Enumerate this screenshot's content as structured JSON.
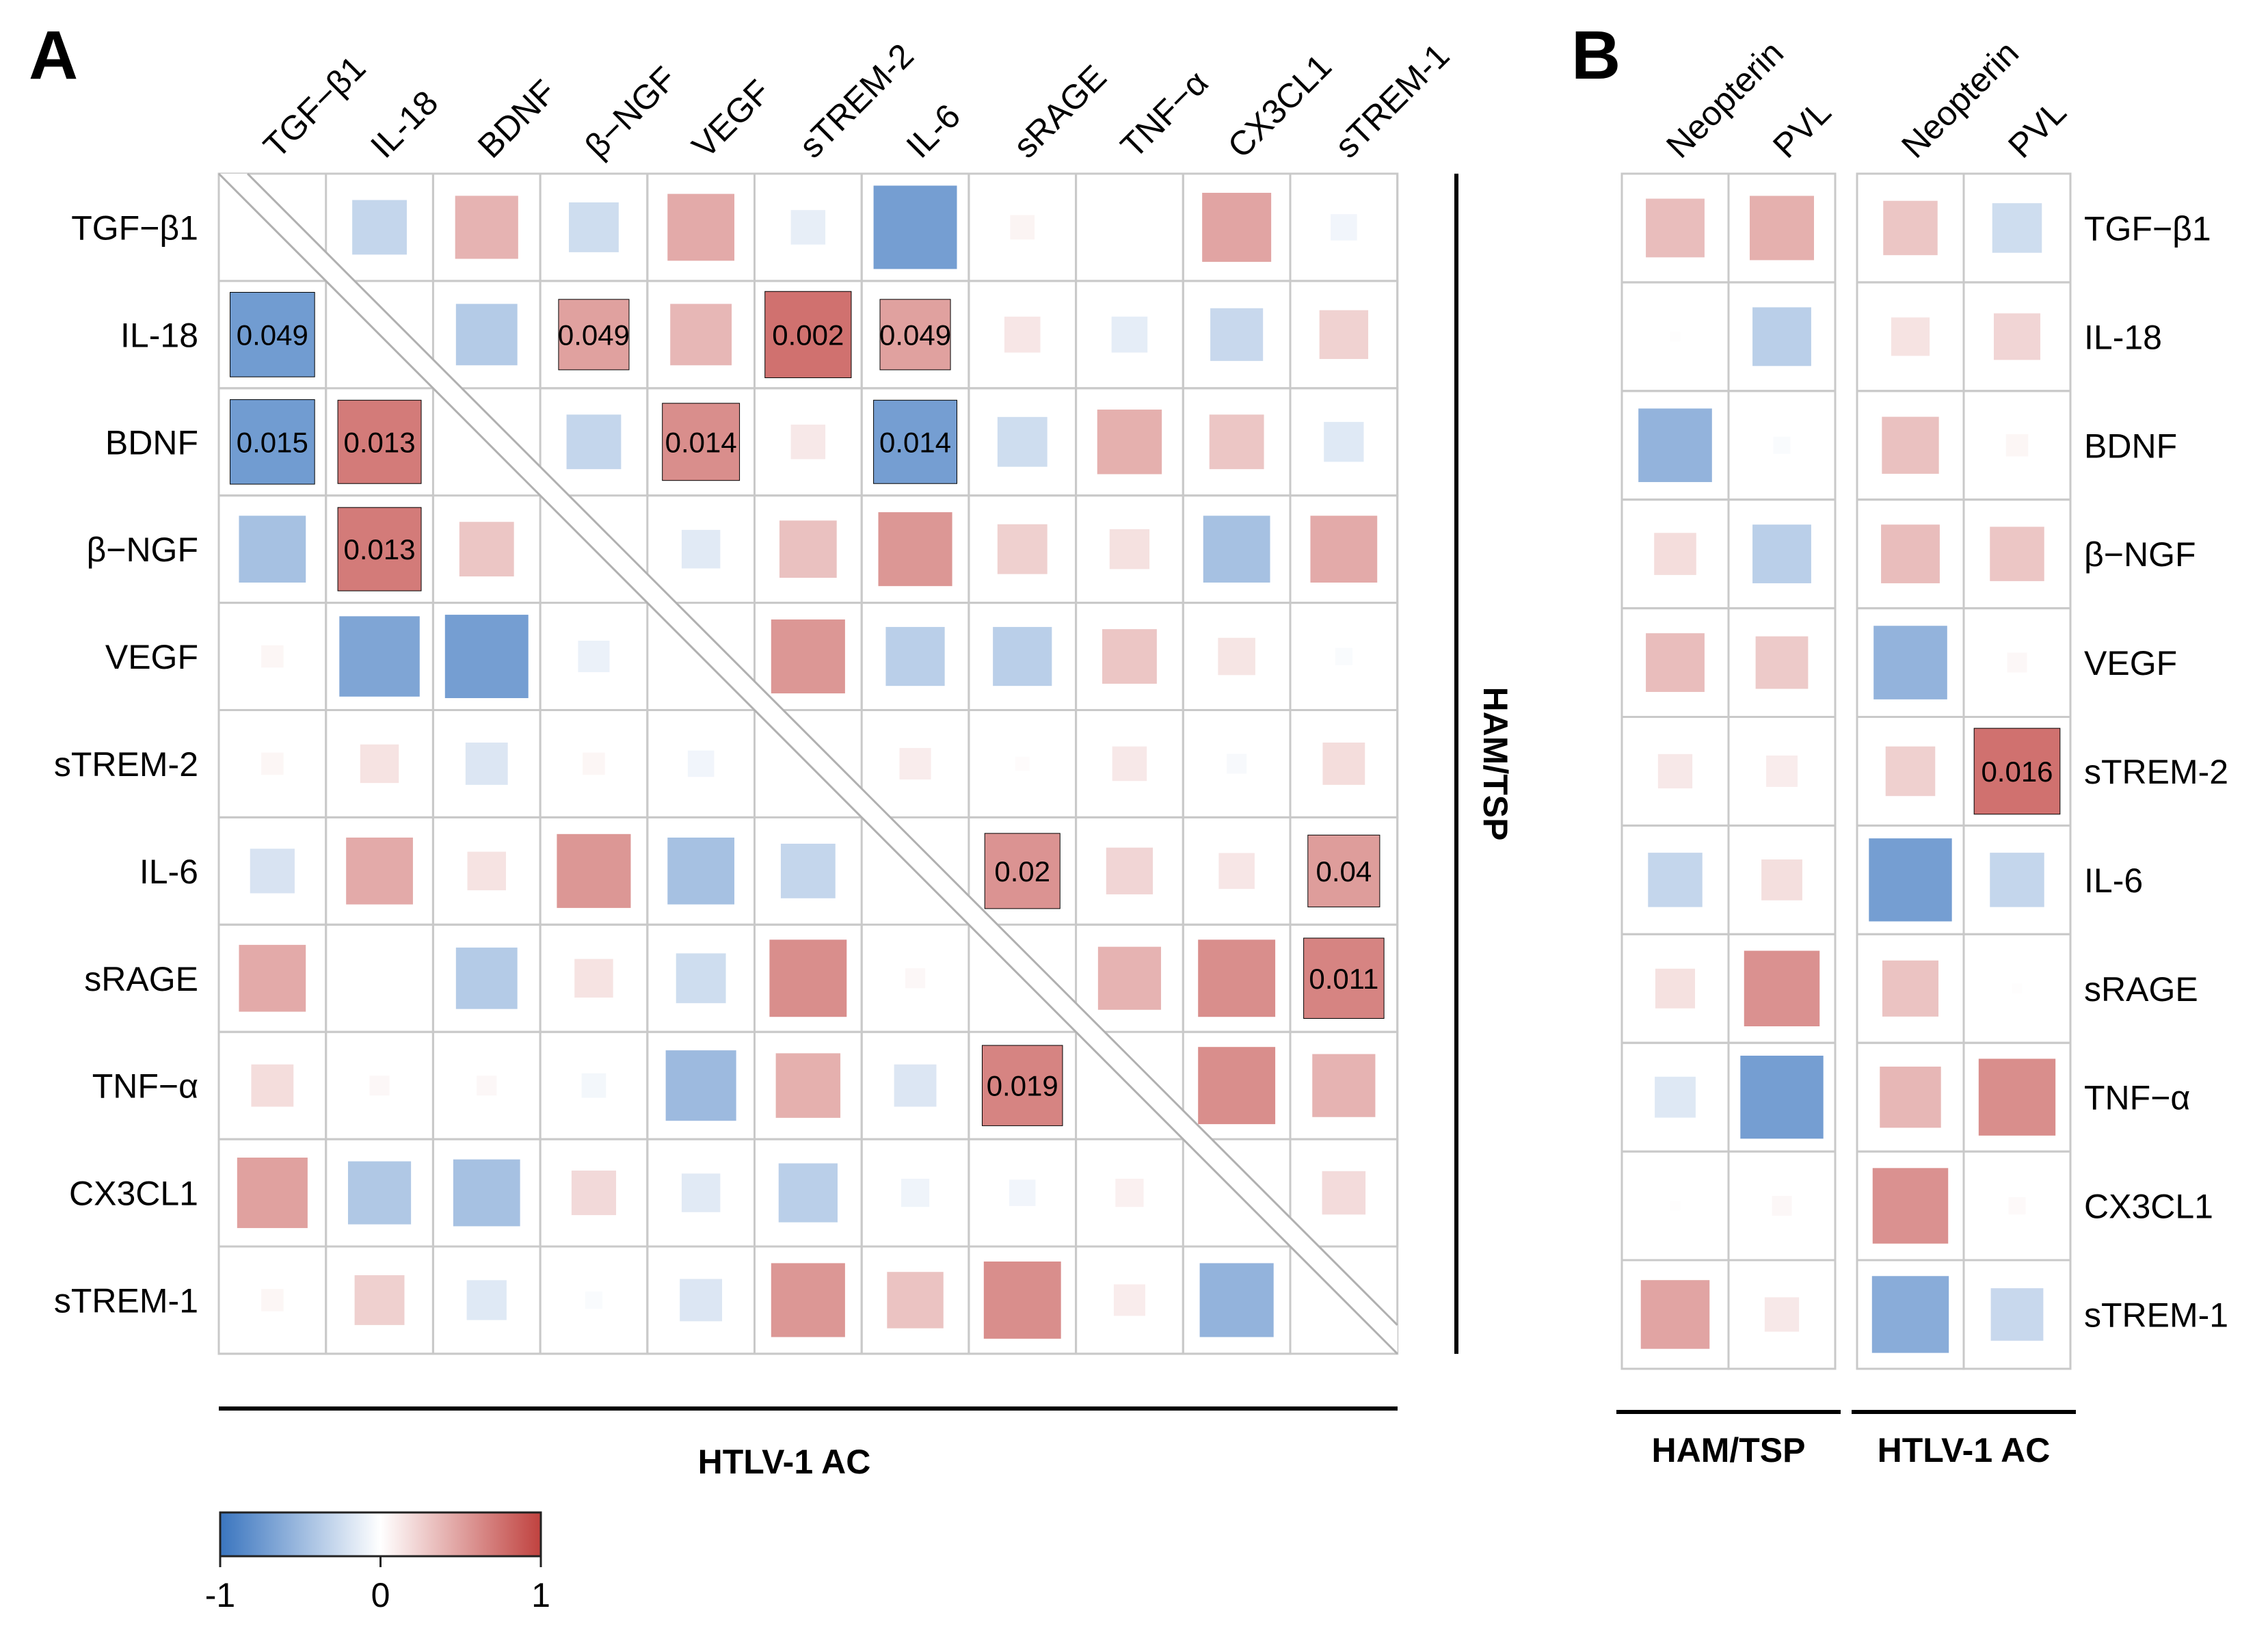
{
  "chart_data": [
    {
      "type": "heatmap",
      "panel_label": "A",
      "description": "Correlation matrix; upper triangle = HAM/TSP group, lower triangle = HTLV-1 AC group",
      "variables": [
        "TGF−β1",
        "IL-18",
        "BDNF",
        "β−NGF",
        "VEGF",
        "sTREM-2",
        "IL-6",
        "sRAGE",
        "TNF−α",
        "CX3CL1",
        "sTREM-1"
      ],
      "upper_group_label": "HAM/TSP",
      "lower_group_label": "HTLV-1 AC",
      "upper": [
        [
          null,
          -0.3,
          0.4,
          -0.25,
          0.45,
          -0.12,
          -0.7,
          0.06,
          0.0,
          0.48,
          -0.07
        ],
        [
          null,
          null,
          -0.38,
          0.5,
          0.38,
          0.75,
          0.5,
          0.13,
          -0.13,
          -0.28,
          0.24
        ],
        [
          null,
          null,
          null,
          -0.3,
          0.6,
          0.12,
          -0.7,
          -0.25,
          0.42,
          0.3,
          -0.16
        ],
        [
          null,
          null,
          null,
          null,
          -0.15,
          0.33,
          0.55,
          0.25,
          0.16,
          -0.45,
          0.45
        ],
        [
          null,
          null,
          null,
          null,
          null,
          0.55,
          -0.35,
          -0.35,
          0.3,
          0.14,
          -0.03
        ],
        [
          null,
          null,
          null,
          null,
          null,
          null,
          0.1,
          0.02,
          0.12,
          -0.04,
          0.18
        ],
        [
          null,
          null,
          null,
          null,
          null,
          null,
          null,
          0.57,
          0.22,
          0.13,
          0.52
        ],
        [
          null,
          null,
          null,
          null,
          null,
          null,
          null,
          null,
          0.4,
          0.6,
          0.65
        ],
        [
          null,
          null,
          null,
          null,
          null,
          null,
          null,
          null,
          null,
          0.6,
          0.4
        ],
        [
          null,
          null,
          null,
          null,
          null,
          null,
          null,
          null,
          null,
          null,
          0.19
        ],
        [
          null,
          null,
          null,
          null,
          null,
          null,
          null,
          null,
          null,
          null,
          null
        ]
      ],
      "lower": [
        [
          null,
          null,
          null,
          null,
          null,
          null,
          null,
          null,
          null,
          null,
          null
        ],
        [
          -0.72,
          null,
          null,
          null,
          null,
          null,
          null,
          null,
          null,
          null,
          null
        ],
        [
          -0.72,
          0.7,
          null,
          null,
          null,
          null,
          null,
          null,
          null,
          null,
          null
        ],
        [
          -0.45,
          0.7,
          0.3,
          null,
          null,
          null,
          null,
          null,
          null,
          null,
          null
        ],
        [
          0.05,
          -0.65,
          -0.7,
          -0.1,
          null,
          null,
          null,
          null,
          null,
          null,
          null
        ],
        [
          0.05,
          0.15,
          -0.18,
          0.05,
          -0.07,
          null,
          null,
          null,
          null,
          null,
          null
        ],
        [
          -0.2,
          0.45,
          0.15,
          0.55,
          -0.45,
          -0.3,
          null,
          null,
          null,
          null,
          null
        ],
        [
          0.45,
          0.0,
          -0.38,
          0.15,
          -0.25,
          0.6,
          0.04,
          null,
          null,
          null,
          null
        ],
        [
          0.18,
          0.04,
          0.04,
          -0.06,
          -0.5,
          0.42,
          -0.18,
          0.65,
          null,
          null,
          null
        ],
        [
          0.5,
          -0.4,
          -0.45,
          0.2,
          -0.15,
          -0.35,
          -0.08,
          -0.07,
          0.08,
          null,
          null
        ],
        [
          0.05,
          0.25,
          -0.16,
          -0.03,
          -0.18,
          0.55,
          0.32,
          0.6,
          0.1,
          -0.55,
          null
        ]
      ],
      "significance_labels": [
        {
          "row": "IL-18",
          "column": "TGF−β1",
          "p": "0.049"
        },
        {
          "row": "BDNF",
          "column": "TGF−β1",
          "p": "0.015"
        },
        {
          "row": "BDNF",
          "column": "IL-18",
          "p": "0.013"
        },
        {
          "row": "β−NGF",
          "column": "IL-18",
          "p": "0.013"
        },
        {
          "row": "TNF−α",
          "column": "sRAGE",
          "p": "0.019"
        },
        {
          "row": "IL-18",
          "column": "β−NGF",
          "p": "0.049"
        },
        {
          "row": "IL-18",
          "column": "sTREM-2",
          "p": "0.002"
        },
        {
          "row": "IL-18",
          "column": "IL-6",
          "p": "0.049"
        },
        {
          "row": "BDNF",
          "column": "VEGF",
          "p": "0.014"
        },
        {
          "row": "BDNF",
          "column": "IL-6",
          "p": "0.014"
        },
        {
          "row": "IL-6",
          "column": "sRAGE",
          "p": "0.02"
        },
        {
          "row": "IL-6",
          "column": "sTREM-1",
          "p": "0.04"
        },
        {
          "row": "sRAGE",
          "column": "sTREM-1",
          "p": "0.011"
        }
      ],
      "colorbar": {
        "min": -1,
        "max": 1,
        "ticks": [
          "-1",
          "0",
          "1"
        ],
        "low_color": "#3a75bf",
        "mid_color": "#ffffff",
        "high_color": "#c0423f"
      }
    },
    {
      "type": "heatmap",
      "panel_label": "B",
      "columns": [
        "Neopterin",
        "PVL"
      ],
      "rows": [
        "TGF−β1",
        "IL-18",
        "BDNF",
        "β−NGF",
        "VEGF",
        "sTREM-2",
        "IL-6",
        "sRAGE",
        "TNF−α",
        "CX3CL1",
        "sTREM-1"
      ],
      "groups": [
        {
          "name": "HAM/TSP",
          "values": [
            [
              0.35,
              0.42
            ],
            [
              0.01,
              -0.35
            ],
            [
              -0.55,
              -0.03
            ],
            [
              0.18,
              -0.35
            ],
            [
              0.35,
              0.28
            ],
            [
              0.12,
              0.1
            ],
            [
              -0.3,
              0.17
            ],
            [
              0.16,
              0.58
            ],
            [
              -0.17,
              -0.7
            ],
            [
              0.01,
              0.04
            ],
            [
              0.48,
              0.12
            ]
          ]
        },
        {
          "name": "HTLV-1 AC",
          "values": [
            [
              0.3,
              -0.25
            ],
            [
              0.15,
              0.22
            ],
            [
              0.33,
              0.05
            ],
            [
              0.35,
              0.3
            ],
            [
              -0.55,
              0.04
            ],
            [
              0.25,
              0.75
            ],
            [
              -0.7,
              -0.3
            ],
            [
              0.32,
              0.01
            ],
            [
              0.38,
              0.6
            ],
            [
              0.58,
              0.03
            ],
            [
              -0.6,
              -0.28
            ]
          ]
        }
      ],
      "significance_labels": [
        {
          "group": "HTLV-1 AC",
          "row": "sTREM-2",
          "column": "PVL",
          "p": "0.016"
        }
      ]
    }
  ]
}
